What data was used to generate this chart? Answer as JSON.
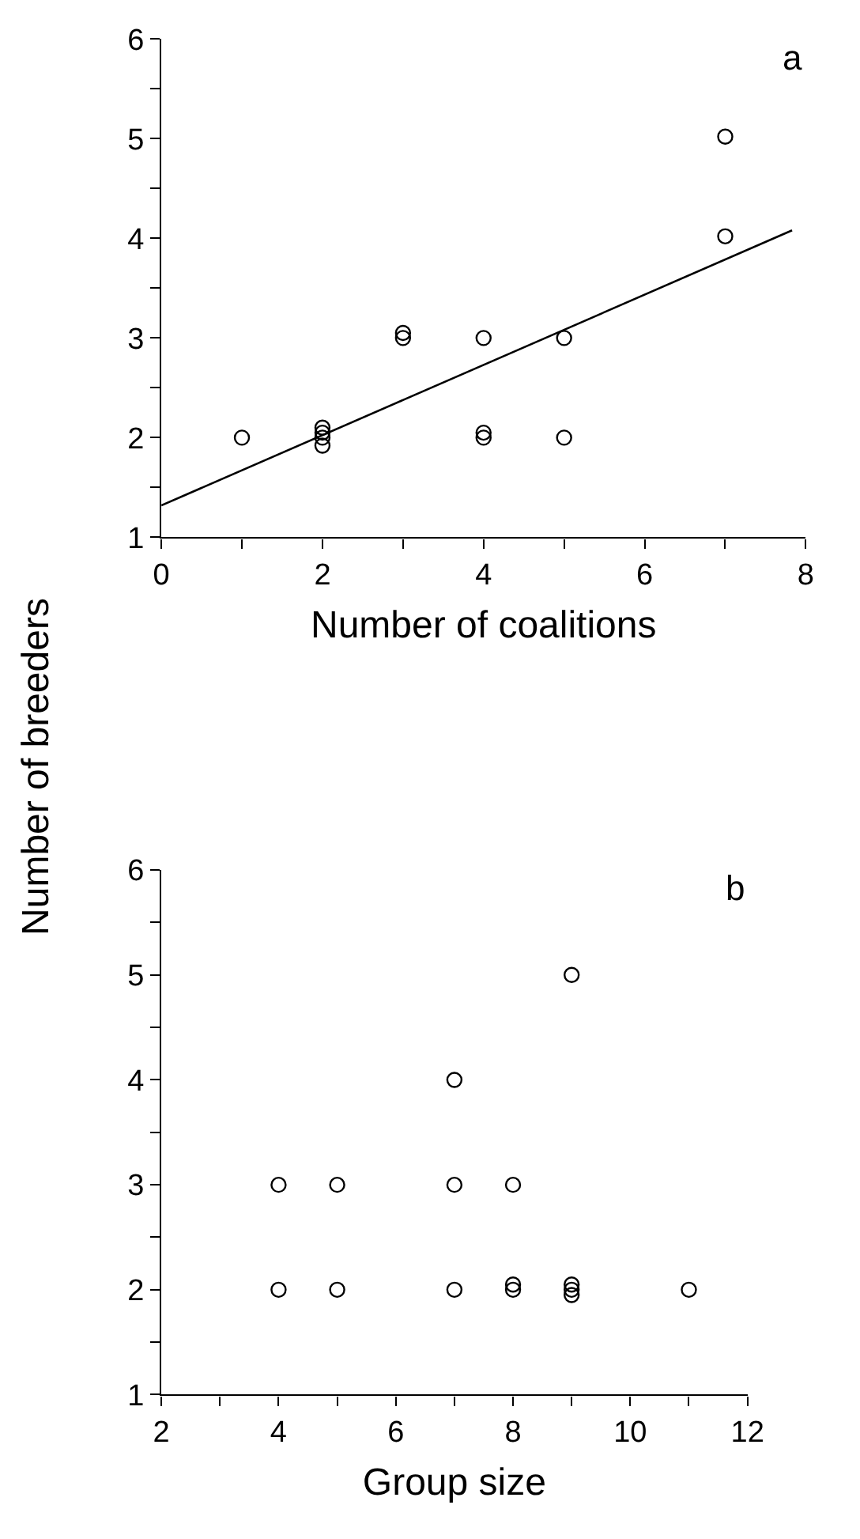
{
  "chart_data": [
    {
      "type": "scatter",
      "xlabel": "Number of coalitions",
      "ylabel": "Number of breeders",
      "annotations": [
        "a"
      ],
      "xlim": [
        0,
        8
      ],
      "ylim": [
        1,
        6
      ],
      "xticks": [
        0,
        {
          "value": 1,
          "label": null
        },
        2,
        {
          "value": 3,
          "label": null
        },
        4,
        {
          "value": 5,
          "label": null
        },
        6,
        {
          "value": 7,
          "label": null
        },
        8
      ],
      "yticks": [
        1,
        {
          "value": 1.5,
          "label": null
        },
        2,
        {
          "value": 2.5,
          "label": null
        },
        3,
        {
          "value": 3.5,
          "label": null
        },
        4,
        {
          "value": 4.5,
          "label": null
        },
        5,
        {
          "value": 5.5,
          "label": null
        },
        6
      ],
      "series": [
        {
          "marker": "circle",
          "color": "#000000",
          "x": [
            1,
            2,
            2,
            2,
            2,
            3,
            3,
            4,
            4,
            4,
            5,
            5,
            7,
            7
          ],
          "values": [
            2,
            2.1,
            2.05,
            2.0,
            1.92,
            3.05,
            3.0,
            3.0,
            2.05,
            2.0,
            3.0,
            2.0,
            5.02,
            4.02
          ]
        },
        {
          "type": "line",
          "marker": "none",
          "color": "#000000",
          "x": [
            0,
            7.83
          ],
          "values": [
            1.32,
            4.08
          ]
        }
      ]
    },
    {
      "type": "scatter",
      "xlabel": "Group size",
      "annotations": [
        "b"
      ],
      "xlim": [
        2,
        12
      ],
      "ylim": [
        1,
        6
      ],
      "xticks": [
        2,
        {
          "value": 3,
          "label": null
        },
        4,
        {
          "value": 5,
          "label": null
        },
        6,
        {
          "value": 7,
          "label": null
        },
        8,
        {
          "value": 9,
          "label": null
        },
        10,
        {
          "value": 11,
          "label": null
        },
        12
      ],
      "yticks": [
        1,
        {
          "value": 1.5,
          "label": null
        },
        2,
        {
          "value": 2.5,
          "label": null
        },
        3,
        {
          "value": 3.5,
          "label": null
        },
        4,
        {
          "value": 4.5,
          "label": null
        },
        5,
        {
          "value": 5.5,
          "label": null
        },
        6
      ],
      "marker": "circle",
      "series": [
        {
          "color": "#000000",
          "x": [
            4,
            5,
            7,
            8,
            4,
            5,
            7,
            8,
            8,
            9,
            9,
            9,
            11,
            7,
            9
          ],
          "values": [
            3,
            3,
            3,
            3,
            2,
            2,
            2,
            2.05,
            2.0,
            2.05,
            2.0,
            1.95,
            2,
            4,
            5
          ]
        }
      ]
    }
  ]
}
